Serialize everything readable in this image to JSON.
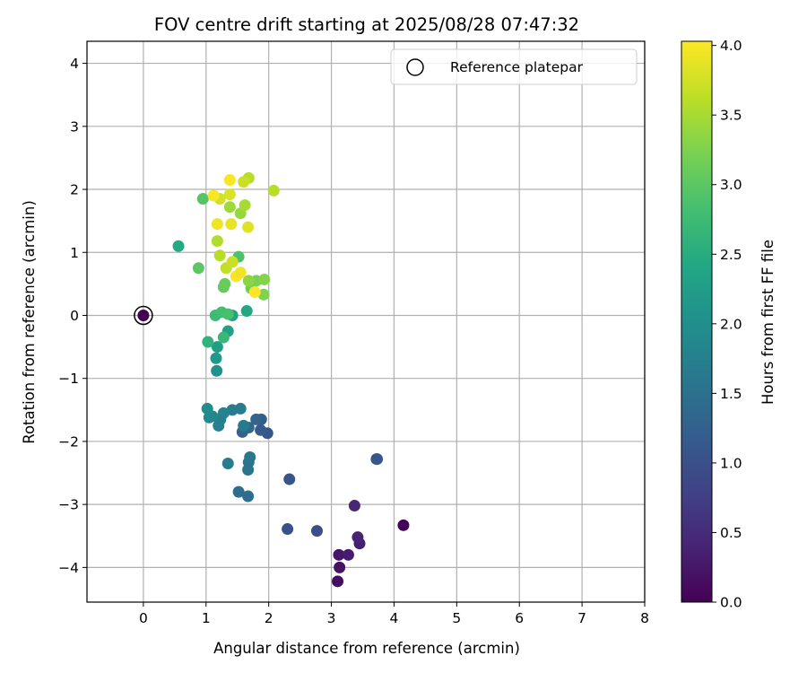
{
  "chart_data": {
    "type": "scatter",
    "title": "FOV centre drift starting at 2025/08/28 07:47:32",
    "xlabel": "Angular distance from reference (arcmin)",
    "ylabel": "Rotation from reference (arcmin)",
    "colorbar_label": "Hours from first FF file",
    "xlim": [
      -0.9,
      8.0
    ],
    "ylim": [
      -4.55,
      4.35
    ],
    "clim": [
      0.0,
      4.03
    ],
    "xticks": [
      0,
      1,
      2,
      3,
      4,
      5,
      6,
      7,
      8
    ],
    "yticks": [
      -4,
      -3,
      -2,
      -1,
      0,
      1,
      2,
      3,
      4
    ],
    "cticks": [
      0.0,
      0.5,
      1.0,
      1.5,
      2.0,
      2.5,
      3.0,
      3.5,
      4.0
    ],
    "xtick_labels": [
      "0",
      "1",
      "2",
      "3",
      "4",
      "5",
      "6",
      "7",
      "8"
    ],
    "ytick_labels": [
      "−4",
      "−3",
      "−2",
      "−1",
      "0",
      "1",
      "2",
      "3",
      "4"
    ],
    "ctick_labels": [
      "0.0",
      "0.5",
      "1.0",
      "1.5",
      "2.0",
      "2.5",
      "3.0",
      "3.5",
      "4.0"
    ],
    "colormap": "viridis",
    "grid": true,
    "legend": {
      "position": "top-right",
      "label": "Reference platepar"
    },
    "reference_point": {
      "x": 0,
      "y": 0,
      "c": 0.0
    },
    "points": [
      {
        "x": 4.15,
        "y": -3.33,
        "c": 0.05
      },
      {
        "x": 3.1,
        "y": -4.22,
        "c": 0.15
      },
      {
        "x": 3.13,
        "y": -4.0,
        "c": 0.2
      },
      {
        "x": 3.12,
        "y": -3.8,
        "c": 0.25
      },
      {
        "x": 3.27,
        "y": -3.8,
        "c": 0.3
      },
      {
        "x": 3.45,
        "y": -3.62,
        "c": 0.35
      },
      {
        "x": 3.42,
        "y": -3.52,
        "c": 0.4
      },
      {
        "x": 3.37,
        "y": -3.02,
        "c": 0.45
      },
      {
        "x": 2.77,
        "y": -3.42,
        "c": 0.95
      },
      {
        "x": 2.3,
        "y": -3.39,
        "c": 1.0
      },
      {
        "x": 2.33,
        "y": -2.6,
        "c": 1.05
      },
      {
        "x": 3.72,
        "y": -2.28,
        "c": 1.05
      },
      {
        "x": 3.73,
        "y": -2.28,
        "c": 1.1
      },
      {
        "x": 1.98,
        "y": -1.87,
        "c": 1.1
      },
      {
        "x": 1.87,
        "y": -1.82,
        "c": 1.15
      },
      {
        "x": 1.88,
        "y": -1.65,
        "c": 1.2
      },
      {
        "x": 1.8,
        "y": -1.65,
        "c": 1.3
      },
      {
        "x": 1.58,
        "y": -1.85,
        "c": 1.3
      },
      {
        "x": 1.68,
        "y": -1.78,
        "c": 1.35
      },
      {
        "x": 1.52,
        "y": -2.8,
        "c": 1.45
      },
      {
        "x": 1.67,
        "y": -2.87,
        "c": 1.45
      },
      {
        "x": 1.67,
        "y": -2.45,
        "c": 1.55
      },
      {
        "x": 1.68,
        "y": -2.33,
        "c": 1.55
      },
      {
        "x": 1.7,
        "y": -2.25,
        "c": 1.6
      },
      {
        "x": 1.35,
        "y": -2.35,
        "c": 1.65
      },
      {
        "x": 1.6,
        "y": -1.75,
        "c": 1.65
      },
      {
        "x": 1.42,
        "y": -1.5,
        "c": 1.7
      },
      {
        "x": 1.55,
        "y": -1.48,
        "c": 1.7
      },
      {
        "x": 1.2,
        "y": -1.75,
        "c": 1.75
      },
      {
        "x": 1.23,
        "y": -1.65,
        "c": 1.75
      },
      {
        "x": 1.28,
        "y": -1.55,
        "c": 1.8
      },
      {
        "x": 1.1,
        "y": -1.6,
        "c": 1.85
      },
      {
        "x": 1.05,
        "y": -1.62,
        "c": 1.9
      },
      {
        "x": 1.02,
        "y": -1.48,
        "c": 1.95
      },
      {
        "x": 1.17,
        "y": -0.88,
        "c": 2.05
      },
      {
        "x": 1.16,
        "y": -0.68,
        "c": 2.15
      },
      {
        "x": 1.18,
        "y": -0.5,
        "c": 2.25
      },
      {
        "x": 1.35,
        "y": -0.25,
        "c": 2.3
      },
      {
        "x": 1.42,
        "y": 0.0,
        "c": 2.35
      },
      {
        "x": 1.65,
        "y": 0.07,
        "c": 2.4
      },
      {
        "x": 0.56,
        "y": 1.1,
        "c": 2.45
      },
      {
        "x": 1.03,
        "y": -0.42,
        "c": 2.6
      },
      {
        "x": 1.28,
        "y": -0.35,
        "c": 2.7
      },
      {
        "x": 1.15,
        "y": 0.0,
        "c": 2.75
      },
      {
        "x": 1.25,
        "y": 0.05,
        "c": 2.8
      },
      {
        "x": 1.35,
        "y": 0.02,
        "c": 2.85
      },
      {
        "x": 1.52,
        "y": 0.93,
        "c": 2.9
      },
      {
        "x": 0.95,
        "y": 1.85,
        "c": 2.95
      },
      {
        "x": 0.88,
        "y": 0.75,
        "c": 3.0
      },
      {
        "x": 1.28,
        "y": 0.45,
        "c": 3.05
      },
      {
        "x": 1.3,
        "y": 0.5,
        "c": 3.1
      },
      {
        "x": 1.72,
        "y": 0.43,
        "c": 3.15
      },
      {
        "x": 1.8,
        "y": 0.55,
        "c": 3.2
      },
      {
        "x": 1.92,
        "y": 0.33,
        "c": 3.25
      },
      {
        "x": 1.93,
        "y": 0.57,
        "c": 3.3
      },
      {
        "x": 1.68,
        "y": 0.55,
        "c": 3.35
      },
      {
        "x": 1.55,
        "y": 1.62,
        "c": 3.4
      },
      {
        "x": 1.38,
        "y": 1.72,
        "c": 3.45
      },
      {
        "x": 1.62,
        "y": 1.75,
        "c": 3.5
      },
      {
        "x": 1.18,
        "y": 1.18,
        "c": 3.55
      },
      {
        "x": 1.22,
        "y": 0.95,
        "c": 3.6
      },
      {
        "x": 1.32,
        "y": 0.75,
        "c": 3.65
      },
      {
        "x": 1.42,
        "y": 0.85,
        "c": 3.7
      },
      {
        "x": 1.22,
        "y": 1.85,
        "c": 3.75
      },
      {
        "x": 1.38,
        "y": 1.92,
        "c": 3.8
      },
      {
        "x": 1.68,
        "y": 2.18,
        "c": 3.6
      },
      {
        "x": 1.6,
        "y": 2.12,
        "c": 3.7
      },
      {
        "x": 2.08,
        "y": 1.98,
        "c": 3.6
      },
      {
        "x": 1.67,
        "y": 1.4,
        "c": 3.85
      },
      {
        "x": 1.4,
        "y": 1.45,
        "c": 3.9
      },
      {
        "x": 1.18,
        "y": 1.45,
        "c": 3.95
      },
      {
        "x": 1.12,
        "y": 1.9,
        "c": 4.0
      },
      {
        "x": 1.38,
        "y": 2.15,
        "c": 4.0
      },
      {
        "x": 1.48,
        "y": 0.62,
        "c": 4.0
      },
      {
        "x": 1.55,
        "y": 0.68,
        "c": 3.95
      },
      {
        "x": 1.78,
        "y": 0.37,
        "c": 4.02
      }
    ]
  }
}
